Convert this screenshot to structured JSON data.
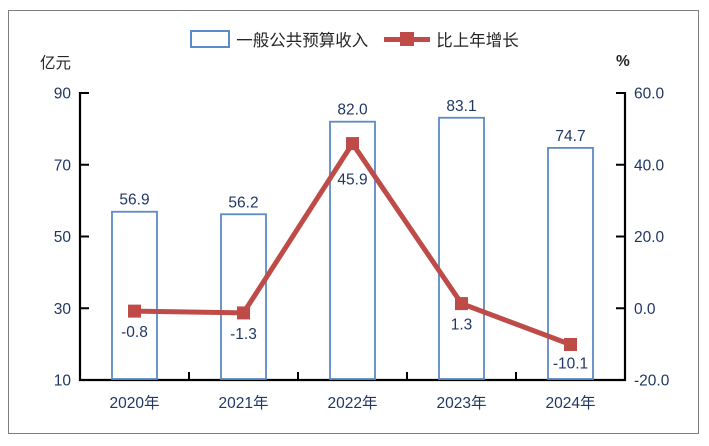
{
  "legend": {
    "bar_label": "一般公共预算收入",
    "line_label": "比上年增长"
  },
  "chart_data": {
    "type": "bar+line combo",
    "title": "",
    "categories": [
      "2020年",
      "2021年",
      "2022年",
      "2023年",
      "2024年"
    ],
    "series": [
      {
        "name": "一般公共预算收入",
        "type": "bar",
        "axis": "left",
        "values": [
          56.9,
          56.2,
          82.0,
          83.1,
          74.7
        ],
        "labels": [
          "56.9",
          "56.2",
          "82.0",
          "83.1",
          "74.7"
        ],
        "color": "#5B8AC6",
        "fill": "#FFFFFF"
      },
      {
        "name": "比上年增长",
        "type": "line",
        "axis": "right",
        "values": [
          -0.8,
          -1.3,
          45.9,
          1.3,
          -10.1
        ],
        "labels": [
          "-0.8",
          "-1.3",
          "45.9",
          "1.3",
          "-10.1"
        ],
        "color": "#BE4B48",
        "marker": "square"
      }
    ],
    "left_axis": {
      "unit": "亿元",
      "min": 10,
      "max": 90,
      "ticks": [
        10,
        30,
        50,
        70,
        90
      ],
      "tick_labels": [
        "10",
        "30",
        "50",
        "70",
        "90"
      ]
    },
    "right_axis": {
      "unit": "%",
      "min": -20,
      "max": 60,
      "ticks": [
        -20,
        0,
        20,
        40,
        60
      ],
      "tick_labels": [
        "-20.0",
        "0.0",
        "20.0",
        "40.0",
        "60.0"
      ]
    },
    "grid": false,
    "legend_position": "top",
    "label_color": "#203764",
    "axis_color": "#000000"
  }
}
